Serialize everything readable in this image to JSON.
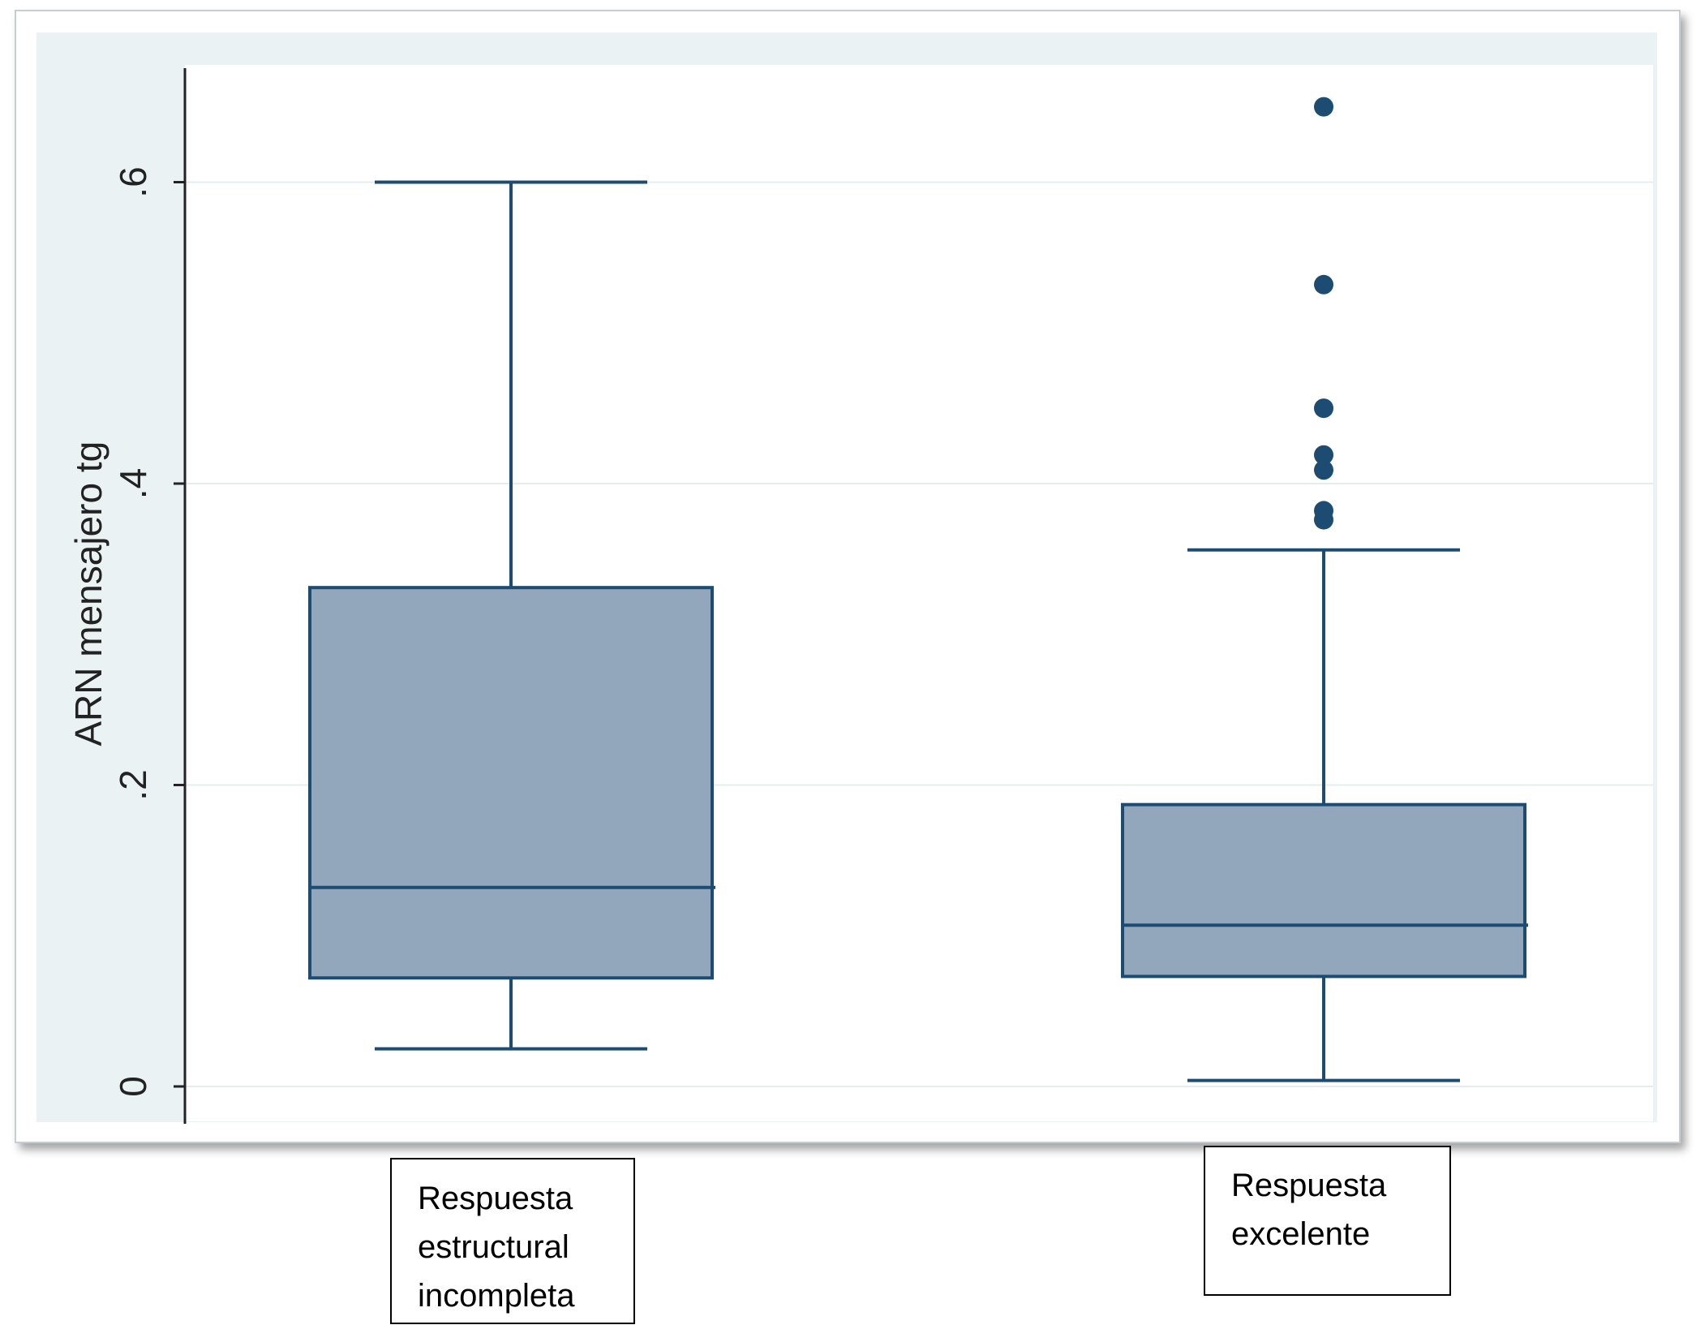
{
  "chart_data": {
    "type": "box",
    "ylabel": "ARN mensajero tg",
    "ylim": [
      0,
      0.67
    ],
    "yticks": [
      {
        "value": 0,
        "label": "0"
      },
      {
        "value": 0.2,
        "label": ".2"
      },
      {
        "value": 0.4,
        "label": ".4"
      },
      {
        "value": 0.6,
        "label": ".6"
      }
    ],
    "grid": true,
    "categories": [
      {
        "lines": [
          "Respuesta",
          "estructural",
          "incompleta"
        ]
      },
      {
        "lines": [
          "Respuesta",
          "excelente"
        ]
      }
    ],
    "boxes": [
      {
        "whisker_low": 0.025,
        "q1": 0.072,
        "median": 0.132,
        "q3": 0.331,
        "whisker_high": 0.6,
        "outliers": []
      },
      {
        "whisker_low": 0.004,
        "q1": 0.073,
        "median": 0.107,
        "q3": 0.187,
        "whisker_high": 0.356,
        "outliers": [
          0.65,
          0.532,
          0.45,
          0.419,
          0.409,
          0.382,
          0.376
        ]
      }
    ],
    "colors": {
      "box_fill": "#93a7bc",
      "box_stroke": "#1d4c72",
      "plot_region": "#eaf2f3",
      "grid": "#e4ecee",
      "axis": "#222222"
    }
  }
}
